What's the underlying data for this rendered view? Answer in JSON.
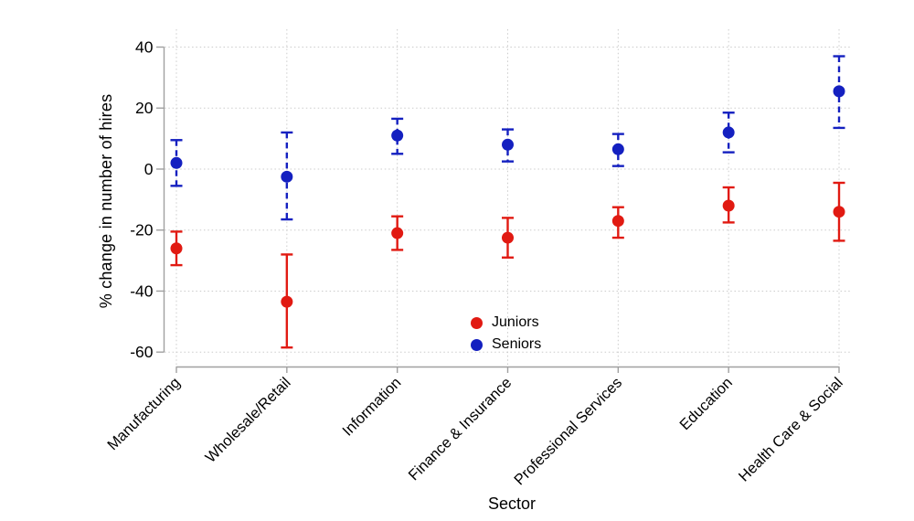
{
  "figure": {
    "y_axis_title": "% change in number of hires",
    "x_axis_title": "Sector"
  },
  "y_axis": {
    "ticks": [
      {
        "label": "40",
        "value": 40
      },
      {
        "label": "20",
        "value": 20
      },
      {
        "label": "0",
        "value": 0
      },
      {
        "label": "-20",
        "value": -20
      },
      {
        "label": "-40",
        "value": -40
      },
      {
        "label": "-60",
        "value": -60
      }
    ]
  },
  "legend": [
    {
      "label": "Juniors",
      "color": "#e11a12"
    },
    {
      "label": "Seniors",
      "color": "#1420c0"
    }
  ],
  "style": {
    "grid_color": "#cccccc",
    "axis_color": "#a0a0a0",
    "text_color": "#000000",
    "background": "#ffffff",
    "juniors_color": "#e11a12",
    "seniors_color": "#1420c0"
  },
  "chart_data": {
    "type": "scatter",
    "subtype": "point-estimates-with-95pct-confidence-intervals",
    "title": "",
    "xlabel": "Sector",
    "ylabel": "% change in number of hires",
    "ylim": [
      -60,
      40
    ],
    "grid": true,
    "legend_position": "inside-bottom-center",
    "categories": [
      "Manufacturing",
      "Wholesale/Retail",
      "Information",
      "Finance & Insurance",
      "Professional Services",
      "Education",
      "Health Care & Social"
    ],
    "series": [
      {
        "name": "Juniors",
        "color": "#e11a12",
        "ci_line_style": "solid",
        "values": [
          -26,
          -43.5,
          -21,
          -22.5,
          -17,
          -12,
          -14
        ],
        "ci_low": [
          -31.5,
          -58.5,
          -26.5,
          -29,
          -22.5,
          -17.5,
          -23.5
        ],
        "ci_high": [
          -20.5,
          -28,
          -15.5,
          -16,
          -12.5,
          -6,
          -4.5
        ]
      },
      {
        "name": "Seniors",
        "color": "#1420c0",
        "ci_line_style": "dashed",
        "values": [
          2,
          -2.5,
          11,
          8,
          6.5,
          12,
          25.5
        ],
        "ci_low": [
          -5.5,
          -16.5,
          5,
          2.5,
          1,
          5.5,
          13.5
        ],
        "ci_high": [
          9.5,
          12,
          16.5,
          13,
          11.5,
          18.5,
          37
        ]
      }
    ]
  }
}
